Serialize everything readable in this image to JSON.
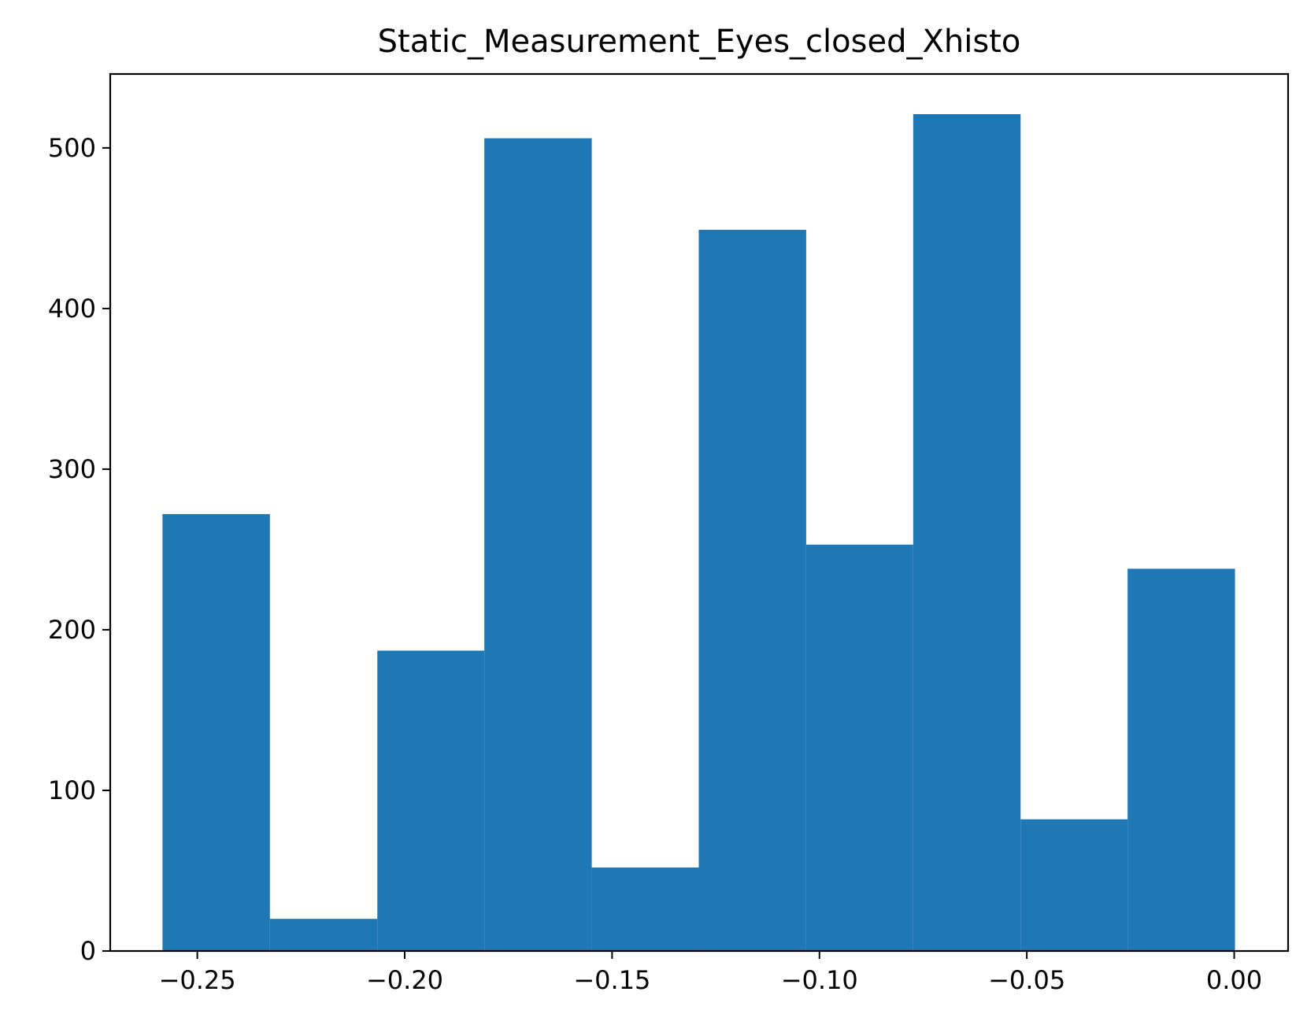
{
  "chart_data": {
    "type": "bar",
    "title": "Static_Measurement_Eyes_closed_Xhisto",
    "xlabel": "",
    "ylabel": "",
    "bin_edges": [
      -0.2584,
      -0.2325,
      -0.2066,
      -0.1808,
      -0.1549,
      -0.1291,
      -0.1032,
      -0.0774,
      -0.0515,
      -0.0257,
      0.0002
    ],
    "values": [
      272,
      20,
      187,
      506,
      52,
      449,
      253,
      521,
      82,
      238
    ],
    "xlim": [
      -0.271,
      0.013
    ],
    "ylim": [
      0,
      546
    ],
    "x_ticks": [
      -0.25,
      -0.2,
      -0.15,
      -0.1,
      -0.05,
      0.0
    ],
    "x_tick_labels": [
      "−0.25",
      "−0.20",
      "−0.15",
      "−0.10",
      "−0.05",
      "0.00"
    ],
    "y_ticks": [
      0,
      100,
      200,
      300,
      400,
      500
    ],
    "y_tick_labels": [
      "0",
      "100",
      "200",
      "300",
      "400",
      "500"
    ],
    "bar_color": "#1f77b4",
    "grid": false,
    "legend": "none"
  }
}
